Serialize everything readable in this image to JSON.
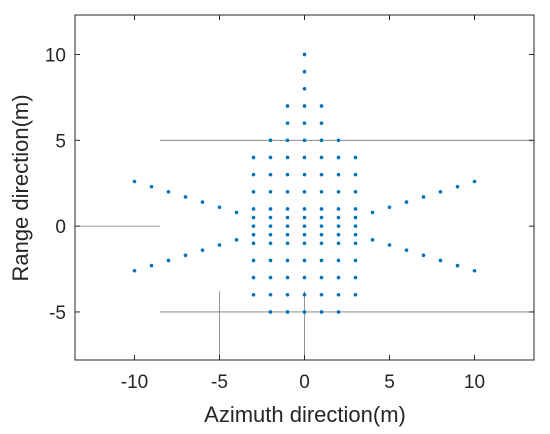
{
  "chart_data": {
    "type": "scatter",
    "title": "",
    "xlabel": "Azimuth direction(m)",
    "ylabel": "Range direction(m)",
    "xlim": [
      -13.5,
      13.5
    ],
    "ylim": [
      -7.8,
      12.3
    ],
    "xticks": [
      -10,
      -5,
      0,
      5,
      10
    ],
    "yticks": [
      -5,
      0,
      5,
      10
    ],
    "xtick_labels": [
      "-10",
      "-5",
      "0",
      "5",
      "10"
    ],
    "ytick_labels": [
      "-5",
      "0",
      "5",
      "10"
    ],
    "grid": false,
    "legend": "none",
    "marker_color": "#0072BD",
    "reference_lines": [
      {
        "orientation": "horizontal",
        "y": 5,
        "x_from": -8.5,
        "x_to": 13.5
      },
      {
        "orientation": "horizontal",
        "y": 0,
        "x_from": -13.5,
        "x_to": -8.5
      },
      {
        "orientation": "horizontal",
        "y": -5,
        "x_from": -8.5,
        "x_to": 13.5
      },
      {
        "orientation": "vertical",
        "x": -5,
        "y_from": -7.8,
        "y_to": -3.8
      },
      {
        "orientation": "vertical",
        "x": 0,
        "y_from": -7.8,
        "y_to": -3.8
      }
    ],
    "series": [
      {
        "values": [
          [
            0,
            10
          ],
          [
            0,
            9
          ],
          [
            0,
            8
          ],
          [
            -1,
            7
          ],
          [
            0,
            7
          ],
          [
            1,
            7
          ],
          [
            -1,
            6
          ],
          [
            0,
            6
          ],
          [
            1,
            6
          ],
          [
            -2,
            5
          ],
          [
            -1,
            5
          ],
          [
            0,
            5
          ],
          [
            1,
            5
          ],
          [
            2,
            5
          ],
          [
            -3,
            4
          ],
          [
            -2,
            4
          ],
          [
            -1,
            4
          ],
          [
            0,
            4
          ],
          [
            1,
            4
          ],
          [
            2,
            4
          ],
          [
            3,
            4
          ],
          [
            -3,
            3
          ],
          [
            -2,
            3
          ],
          [
            -1,
            3
          ],
          [
            0,
            3
          ],
          [
            1,
            3
          ],
          [
            2,
            3
          ],
          [
            3,
            3
          ],
          [
            -3,
            2
          ],
          [
            -2,
            2
          ],
          [
            -1,
            2
          ],
          [
            0,
            2
          ],
          [
            1,
            2
          ],
          [
            2,
            2
          ],
          [
            3,
            2
          ],
          [
            -3,
            1
          ],
          [
            -2,
            1
          ],
          [
            -1,
            1
          ],
          [
            0,
            1
          ],
          [
            1,
            1
          ],
          [
            2,
            1
          ],
          [
            3,
            1
          ],
          [
            -3,
            0.5
          ],
          [
            -2,
            0.5
          ],
          [
            -1,
            0.5
          ],
          [
            0,
            0.5
          ],
          [
            1,
            0.5
          ],
          [
            2,
            0.5
          ],
          [
            3,
            0.5
          ],
          [
            -3,
            0
          ],
          [
            -2,
            0
          ],
          [
            -1,
            0
          ],
          [
            0,
            0
          ],
          [
            1,
            0
          ],
          [
            2,
            0
          ],
          [
            3,
            0
          ],
          [
            -3,
            -0.5
          ],
          [
            -2,
            -0.5
          ],
          [
            -1,
            -0.5
          ],
          [
            0,
            -0.5
          ],
          [
            1,
            -0.5
          ],
          [
            2,
            -0.5
          ],
          [
            3,
            -0.5
          ],
          [
            -3,
            -1
          ],
          [
            -2,
            -1
          ],
          [
            -1,
            -1
          ],
          [
            0,
            -1
          ],
          [
            1,
            -1
          ],
          [
            2,
            -1
          ],
          [
            3,
            -1
          ],
          [
            -3,
            -2
          ],
          [
            -2,
            -2
          ],
          [
            -1,
            -2
          ],
          [
            0,
            -2
          ],
          [
            1,
            -2
          ],
          [
            2,
            -2
          ],
          [
            3,
            -2
          ],
          [
            -3,
            -3
          ],
          [
            -2,
            -3
          ],
          [
            -1,
            -3
          ],
          [
            0,
            -3
          ],
          [
            1,
            -3
          ],
          [
            2,
            -3
          ],
          [
            3,
            -3
          ],
          [
            -3,
            -4
          ],
          [
            -2,
            -4
          ],
          [
            -1,
            -4
          ],
          [
            0,
            -4
          ],
          [
            1,
            -4
          ],
          [
            2,
            -4
          ],
          [
            3,
            -4
          ],
          [
            -2,
            -5
          ],
          [
            -1,
            -5
          ],
          [
            0,
            -5
          ],
          [
            1,
            -5
          ],
          [
            2,
            -5
          ],
          [
            -10,
            2.6
          ],
          [
            -9,
            2.3
          ],
          [
            -8,
            2.0
          ],
          [
            -7,
            1.7
          ],
          [
            -6,
            1.4
          ],
          [
            -5,
            1.1
          ],
          [
            -4,
            0.8
          ],
          [
            -10,
            -2.6
          ],
          [
            -9,
            -2.3
          ],
          [
            -8,
            -2.0
          ],
          [
            -7,
            -1.7
          ],
          [
            -6,
            -1.4
          ],
          [
            -5,
            -1.1
          ],
          [
            -4,
            -0.8
          ],
          [
            4,
            0.8
          ],
          [
            5,
            1.1
          ],
          [
            6,
            1.4
          ],
          [
            7,
            1.7
          ],
          [
            8,
            2.0
          ],
          [
            9,
            2.3
          ],
          [
            10,
            2.6
          ],
          [
            4,
            -0.8
          ],
          [
            5,
            -1.1
          ],
          [
            6,
            -1.4
          ],
          [
            7,
            -1.7
          ],
          [
            8,
            -2.0
          ],
          [
            9,
            -2.3
          ],
          [
            10,
            -2.6
          ]
        ]
      }
    ]
  }
}
